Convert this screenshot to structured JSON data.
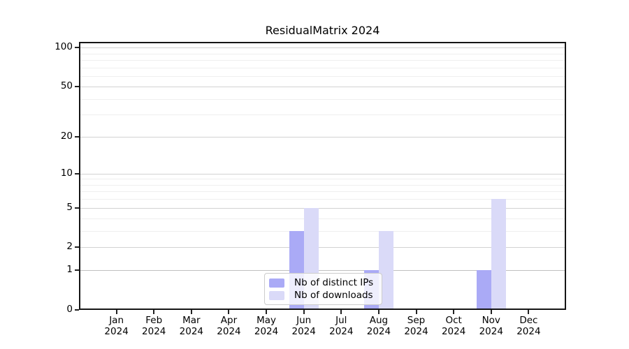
{
  "title": "ResidualMatrix 2024",
  "chart_data": {
    "type": "bar",
    "title": "ResidualMatrix 2024",
    "x_categories": [
      "Jan",
      "Feb",
      "Mar",
      "Apr",
      "May",
      "Jun",
      "Jul",
      "Aug",
      "Sep",
      "Oct",
      "Nov",
      "Dec"
    ],
    "x_year_label": "2024",
    "series": [
      {
        "name": "Nb of distinct IPs",
        "color": "#aaaaf6",
        "values": [
          0,
          0,
          0,
          0,
          0,
          3,
          0,
          1,
          0,
          0,
          1,
          0
        ]
      },
      {
        "name": "Nb of downloads",
        "color": "#dadaf8",
        "values": [
          0,
          0,
          0,
          0,
          0,
          5,
          0,
          3,
          0,
          0,
          6,
          0
        ]
      }
    ],
    "y_scale": "log1p",
    "y_major_ticks": [
      0,
      1,
      2,
      5,
      10,
      20,
      50,
      100
    ],
    "y_minor_gridlines": [
      3,
      4,
      6,
      7,
      8,
      9,
      30,
      40,
      60,
      70,
      80,
      90
    ],
    "ylim": [
      0,
      112
    ],
    "grid": true,
    "legend_position": "lower center",
    "colors": {
      "grid_major": "#d2d2d2",
      "grid_minor": "#efefef",
      "grid_unit_line": "#c0c0c0",
      "axis": "#151515"
    }
  }
}
